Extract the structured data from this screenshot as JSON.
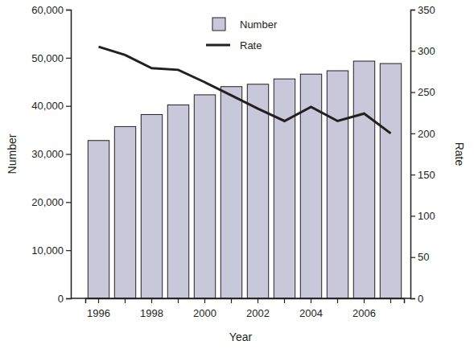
{
  "chart_data": {
    "type": "bar",
    "x_label": "Year",
    "y_label": "Number",
    "y2_label": "Rate",
    "categories": [
      "1996",
      null,
      "1998",
      null,
      "2000",
      null,
      "2002",
      null,
      "2004",
      null,
      "2006",
      null
    ],
    "series": [
      {
        "name": "Number",
        "type": "bar",
        "color": "#c8c8da",
        "values": [
          32800,
          35700,
          38200,
          40200,
          42300,
          44000,
          44500,
          45600,
          46600,
          47300,
          49300,
          48800
        ]
      },
      {
        "name": "Rate",
        "type": "line",
        "axis": "y2",
        "color": "#231f20",
        "values": [
          305,
          295,
          279,
          277,
          262,
          246,
          230,
          215,
          232,
          215,
          224,
          200
        ]
      }
    ],
    "ylim": [
      0,
      60000
    ],
    "yticks": [
      0,
      {
        "value": 10000,
        "label": "10,000"
      },
      {
        "value": 20000,
        "label": "20,000"
      },
      {
        "value": 30000,
        "label": "30,000"
      },
      {
        "value": 40000,
        "label": "40,000"
      },
      {
        "value": 50000,
        "label": "50,000"
      },
      {
        "value": 60000,
        "label": "60,000"
      }
    ],
    "y2lim": [
      0,
      350
    ],
    "y2ticks": [
      0,
      50,
      100,
      150,
      200,
      250,
      300,
      350
    ],
    "legend": "top",
    "grid": false
  }
}
